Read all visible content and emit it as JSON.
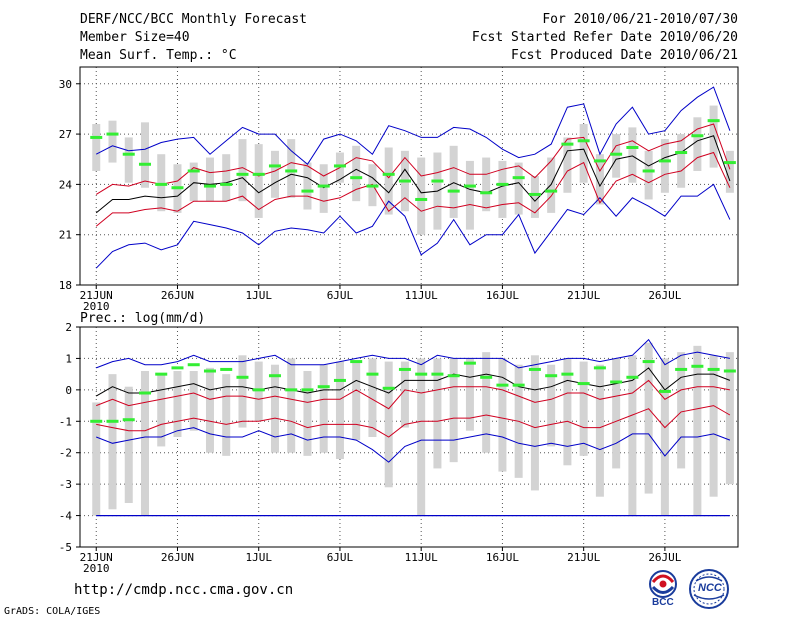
{
  "header": {
    "title": "DERF/NCC/BCC Monthly Forecast",
    "member_size": "Member Size=40",
    "variable": "Mean Surf. Temp.: °C",
    "period": "For 2010/06/21-2010/07/30",
    "started": "Fcst Started Refer Date 2010/06/20",
    "produced": "Fcst Produced Date 2010/06/21"
  },
  "footer": {
    "url": "http://cmdp.ncc.cma.gov.cn",
    "credit": "GrADS: COLA/IGES",
    "logo_bcc": "BCC",
    "logo_ncc": "NCC"
  },
  "colors": {
    "box": "#d3d3d3",
    "mean": "#000000",
    "sd": "#d00020",
    "extreme": "#0000c8",
    "clim": "#33ee33",
    "grid": "#555555"
  },
  "chart_data": [
    {
      "type": "line",
      "title": "Mean Surf. Temp.: °C",
      "xlabel": "",
      "ylabel": "°C",
      "xlim": [
        1,
        40
      ],
      "ylim": [
        18,
        31
      ],
      "yticks": [
        18,
        21,
        24,
        27,
        30
      ],
      "x_tick_days": [
        1,
        6,
        11,
        16,
        21,
        26,
        31,
        36
      ],
      "x_tick_labels": [
        "21JUN",
        "26JUN",
        "1JUL",
        "6JUL",
        "11JUL",
        "16JUL",
        "21JUL",
        "26JUL"
      ],
      "x_year_label": "2010",
      "grid": true,
      "series": [
        {
          "name": "max",
          "values": [
            19.0,
            20.0,
            20.4,
            20.5,
            20.1,
            20.4,
            21.8,
            21.6,
            21.4,
            21.1,
            20.4,
            21.2,
            21.4,
            21.3,
            21.1,
            22.1,
            21.1,
            21.5,
            23.0,
            22.1,
            19.8,
            20.5,
            21.9,
            20.4,
            21.0,
            21.0,
            22.2,
            19.9,
            21.2,
            22.5,
            22.2,
            23.2,
            22.1,
            23.2,
            22.7,
            22.1,
            23.3,
            23.3,
            24.0,
            21.9
          ]
        },
        {
          "name": "sd_low",
          "values": [
            21.5,
            22.3,
            22.3,
            22.5,
            22.6,
            22.4,
            23.0,
            23.0,
            23.0,
            23.3,
            22.5,
            23.1,
            23.3,
            23.3,
            23.0,
            23.2,
            23.7,
            24.0,
            22.4,
            23.2,
            22.4,
            22.7,
            22.6,
            22.8,
            22.6,
            22.8,
            22.9,
            22.3,
            23.3,
            24.8,
            25.3,
            22.9,
            24.2,
            24.6,
            24.1,
            24.6,
            24.8,
            25.6,
            25.9,
            23.8
          ]
        },
        {
          "name": "mean",
          "values": [
            22.3,
            23.1,
            23.1,
            23.3,
            23.2,
            23.3,
            24.1,
            24.0,
            24.1,
            24.4,
            23.5,
            24.1,
            24.6,
            24.4,
            23.8,
            24.3,
            24.9,
            24.4,
            23.5,
            24.9,
            23.5,
            23.6,
            24.1,
            23.7,
            23.5,
            23.9,
            24.1,
            23.0,
            24.0,
            26.0,
            26.1,
            23.9,
            25.5,
            25.7,
            25.1,
            25.6,
            25.9,
            26.6,
            26.9,
            24.2
          ]
        },
        {
          "name": "sd_high",
          "values": [
            23.4,
            24.0,
            23.9,
            24.2,
            24.0,
            24.2,
            25.0,
            24.7,
            24.8,
            25.0,
            24.5,
            24.8,
            25.3,
            25.1,
            24.5,
            25.0,
            25.6,
            25.4,
            24.4,
            25.6,
            24.5,
            24.7,
            25.0,
            24.6,
            24.6,
            24.9,
            25.1,
            24.4,
            25.4,
            26.7,
            26.8,
            24.8,
            26.3,
            26.6,
            26.0,
            26.4,
            26.6,
            27.3,
            27.6,
            24.9
          ]
        },
        {
          "name": "min",
          "values": [
            25.8,
            26.3,
            26.0,
            26.1,
            26.5,
            26.7,
            26.8,
            25.8,
            26.6,
            27.4,
            27.0,
            27.0,
            26.0,
            25.2,
            26.7,
            27.0,
            26.6,
            25.8,
            27.5,
            27.2,
            26.8,
            26.8,
            27.4,
            27.3,
            26.8,
            26.1,
            25.6,
            25.8,
            26.4,
            28.6,
            28.8,
            25.8,
            27.6,
            28.6,
            27.0,
            27.2,
            28.4,
            29.2,
            29.8,
            27.2
          ]
        },
        {
          "name": "clim",
          "values": [
            26.8,
            27.0,
            25.8,
            25.2,
            24.0,
            23.8,
            24.8,
            23.9,
            24.0,
            24.6,
            24.6,
            25.1,
            24.8,
            23.6,
            23.9,
            25.1,
            24.4,
            23.9,
            24.6,
            24.2,
            23.1,
            24.2,
            23.6,
            23.9,
            23.5,
            24.0,
            24.4,
            23.4,
            23.6,
            26.4,
            26.6,
            25.4,
            25.8,
            26.2,
            24.8,
            25.4,
            25.9,
            26.9,
            27.8,
            25.3
          ]
        },
        {
          "name": "box_low",
          "values": [
            24.8,
            25.3,
            24.1,
            23.8,
            22.4,
            22.3,
            23.0,
            23.0,
            23.0,
            23.0,
            22.0,
            23.2,
            23.2,
            22.5,
            22.3,
            24.1,
            23.0,
            22.7,
            22.2,
            22.4,
            21.0,
            21.3,
            22.0,
            21.3,
            22.4,
            22.0,
            22.2,
            22.0,
            22.3,
            23.5,
            24.1,
            22.8,
            24.4,
            24.1,
            23.1,
            23.5,
            23.8,
            24.8,
            25.0,
            23.5
          ]
        },
        {
          "name": "box_high",
          "values": [
            27.6,
            27.8,
            26.8,
            27.7,
            25.8,
            25.2,
            25.3,
            25.6,
            25.8,
            26.7,
            26.4,
            26.0,
            26.7,
            25.3,
            25.2,
            25.9,
            26.3,
            25.2,
            26.2,
            26.0,
            25.6,
            25.9,
            26.3,
            25.4,
            25.6,
            25.4,
            25.3,
            24.5,
            25.6,
            26.8,
            27.6,
            25.8,
            27.0,
            27.4,
            26.0,
            26.7,
            27.0,
            28.0,
            28.7,
            26.0
          ]
        }
      ]
    },
    {
      "type": "line",
      "title": "Prec.: log(mm/d)",
      "xlabel": "",
      "ylabel": "log(mm/d)",
      "xlim": [
        1,
        40
      ],
      "ylim": [
        -5,
        2
      ],
      "yticks": [
        -5,
        -4,
        -3,
        -2,
        -1,
        0,
        1,
        2
      ],
      "x_tick_days": [
        1,
        6,
        11,
        16,
        21,
        26,
        31,
        36
      ],
      "x_tick_labels": [
        "21JUN",
        "26JUN",
        "1JUL",
        "6JUL",
        "11JUL",
        "16JUL",
        "21JUL",
        "26JUL"
      ],
      "x_year_label": "2010",
      "grid": true,
      "series": [
        {
          "name": "max",
          "values": [
            0.7,
            0.9,
            1.0,
            0.8,
            0.8,
            0.9,
            1.1,
            0.9,
            0.9,
            0.9,
            1.0,
            1.1,
            0.8,
            0.8,
            0.8,
            0.9,
            1.0,
            1.1,
            1.0,
            1.0,
            0.8,
            1.1,
            1.0,
            1.0,
            1.0,
            1.0,
            0.7,
            0.8,
            0.9,
            1.0,
            1.0,
            0.9,
            1.0,
            1.1,
            1.6,
            0.8,
            1.1,
            1.2,
            1.1,
            1.0
          ]
        },
        {
          "name": "mean",
          "values": [
            -0.2,
            0.1,
            -0.1,
            -0.1,
            0.0,
            0.1,
            0.2,
            0.0,
            0.1,
            0.1,
            0.0,
            0.1,
            0.0,
            -0.1,
            0.0,
            0.0,
            0.3,
            0.1,
            -0.1,
            0.3,
            0.3,
            0.3,
            0.5,
            0.4,
            0.5,
            0.4,
            0.1,
            0.0,
            0.1,
            0.3,
            0.2,
            0.1,
            0.2,
            0.3,
            0.7,
            0.0,
            0.4,
            0.5,
            0.5,
            0.3
          ]
        },
        {
          "name": "sd_high",
          "values": [
            -0.5,
            -0.3,
            -0.5,
            -0.4,
            -0.3,
            -0.2,
            -0.1,
            -0.3,
            -0.2,
            -0.2,
            -0.3,
            -0.2,
            -0.3,
            -0.4,
            -0.3,
            -0.3,
            0.0,
            -0.3,
            -0.6,
            0.0,
            -0.1,
            0.0,
            0.1,
            0.1,
            0.1,
            0.0,
            -0.2,
            -0.4,
            -0.3,
            -0.1,
            -0.1,
            -0.3,
            -0.2,
            -0.1,
            0.3,
            -0.3,
            0.0,
            0.1,
            0.1,
            0.0
          ]
        },
        {
          "name": "sd_low",
          "values": [
            -1.1,
            -1.2,
            -1.3,
            -1.3,
            -1.1,
            -1.0,
            -0.9,
            -1.0,
            -1.1,
            -1.0,
            -1.0,
            -0.9,
            -1.0,
            -1.2,
            -1.1,
            -1.1,
            -1.1,
            -1.2,
            -1.5,
            -1.1,
            -1.0,
            -1.0,
            -0.9,
            -0.9,
            -0.8,
            -0.9,
            -1.0,
            -1.2,
            -1.1,
            -1.0,
            -1.2,
            -1.2,
            -1.0,
            -0.8,
            -0.6,
            -1.2,
            -0.7,
            -0.6,
            -0.5,
            -0.8
          ]
        },
        {
          "name": "min",
          "values": [
            -1.5,
            -1.7,
            -1.6,
            -1.5,
            -1.5,
            -1.3,
            -1.2,
            -1.4,
            -1.5,
            -1.5,
            -1.3,
            -1.5,
            -1.4,
            -1.6,
            -1.5,
            -1.5,
            -1.6,
            -1.9,
            -2.3,
            -1.8,
            -1.6,
            -1.6,
            -1.6,
            -1.5,
            -1.4,
            -1.5,
            -1.7,
            -1.8,
            -1.7,
            -1.8,
            -1.7,
            -1.9,
            -1.7,
            -1.4,
            -1.4,
            -2.1,
            -1.5,
            -1.5,
            -1.4,
            -1.6
          ]
        },
        {
          "name": "floor",
          "values": [
            -4.0,
            -4.0,
            -4.0,
            -4.0,
            -4.0,
            -4.0,
            -4.0,
            -4.0,
            -4.0,
            -4.0,
            -4.0,
            -4.0,
            -4.0,
            -4.0,
            -4.0,
            -4.0,
            -4.0,
            -4.0,
            -4.0,
            -4.0,
            -4.0,
            -4.0,
            -4.0,
            -4.0,
            -4.0,
            -4.0,
            -4.0,
            -4.0,
            -4.0,
            -4.0,
            -4.0,
            -4.0,
            -4.0,
            -4.0,
            -4.0,
            -4.0,
            -4.0,
            -4.0,
            -4.0,
            -4.0
          ]
        },
        {
          "name": "clim",
          "values": [
            -1.0,
            -1.0,
            -0.95,
            -0.1,
            0.5,
            0.7,
            0.8,
            0.6,
            0.65,
            0.4,
            0.0,
            0.45,
            0.0,
            0.0,
            0.1,
            0.3,
            0.9,
            0.5,
            0.05,
            0.65,
            0.5,
            0.5,
            0.45,
            0.85,
            0.4,
            0.15,
            0.15,
            0.65,
            0.45,
            0.5,
            0.2,
            0.7,
            0.25,
            0.4,
            0.9,
            -0.05,
            0.65,
            0.75,
            0.65,
            0.6
          ]
        },
        {
          "name": "box_low",
          "values": [
            -4.0,
            -3.8,
            -3.6,
            -4.0,
            -1.8,
            -1.5,
            -1.3,
            -2.0,
            -2.1,
            -1.2,
            -1.0,
            -2.0,
            -2.0,
            -2.1,
            -2.0,
            -2.2,
            -1.6,
            -1.5,
            -3.1,
            -1.2,
            -4.0,
            -2.5,
            -2.3,
            -1.3,
            -2.0,
            -2.6,
            -2.8,
            -3.2,
            -1.8,
            -2.4,
            -2.1,
            -3.4,
            -2.5,
            -4.0,
            -3.3,
            -4.0,
            -2.5,
            -4.0,
            -3.4,
            -3.0
          ]
        },
        {
          "name": "box_high",
          "values": [
            -0.4,
            0.5,
            0.1,
            0.6,
            0.5,
            0.6,
            0.6,
            0.7,
            0.5,
            1.1,
            0.9,
            0.8,
            1.0,
            0.6,
            0.8,
            0.9,
            0.9,
            1.0,
            0.9,
            0.9,
            1.0,
            1.0,
            1.0,
            1.0,
            1.2,
            1.0,
            0.8,
            1.1,
            0.8,
            1.0,
            0.9,
            0.8,
            1.0,
            1.1,
            1.5,
            1.0,
            1.2,
            1.4,
            1.1,
            1.2
          ]
        }
      ]
    }
  ]
}
